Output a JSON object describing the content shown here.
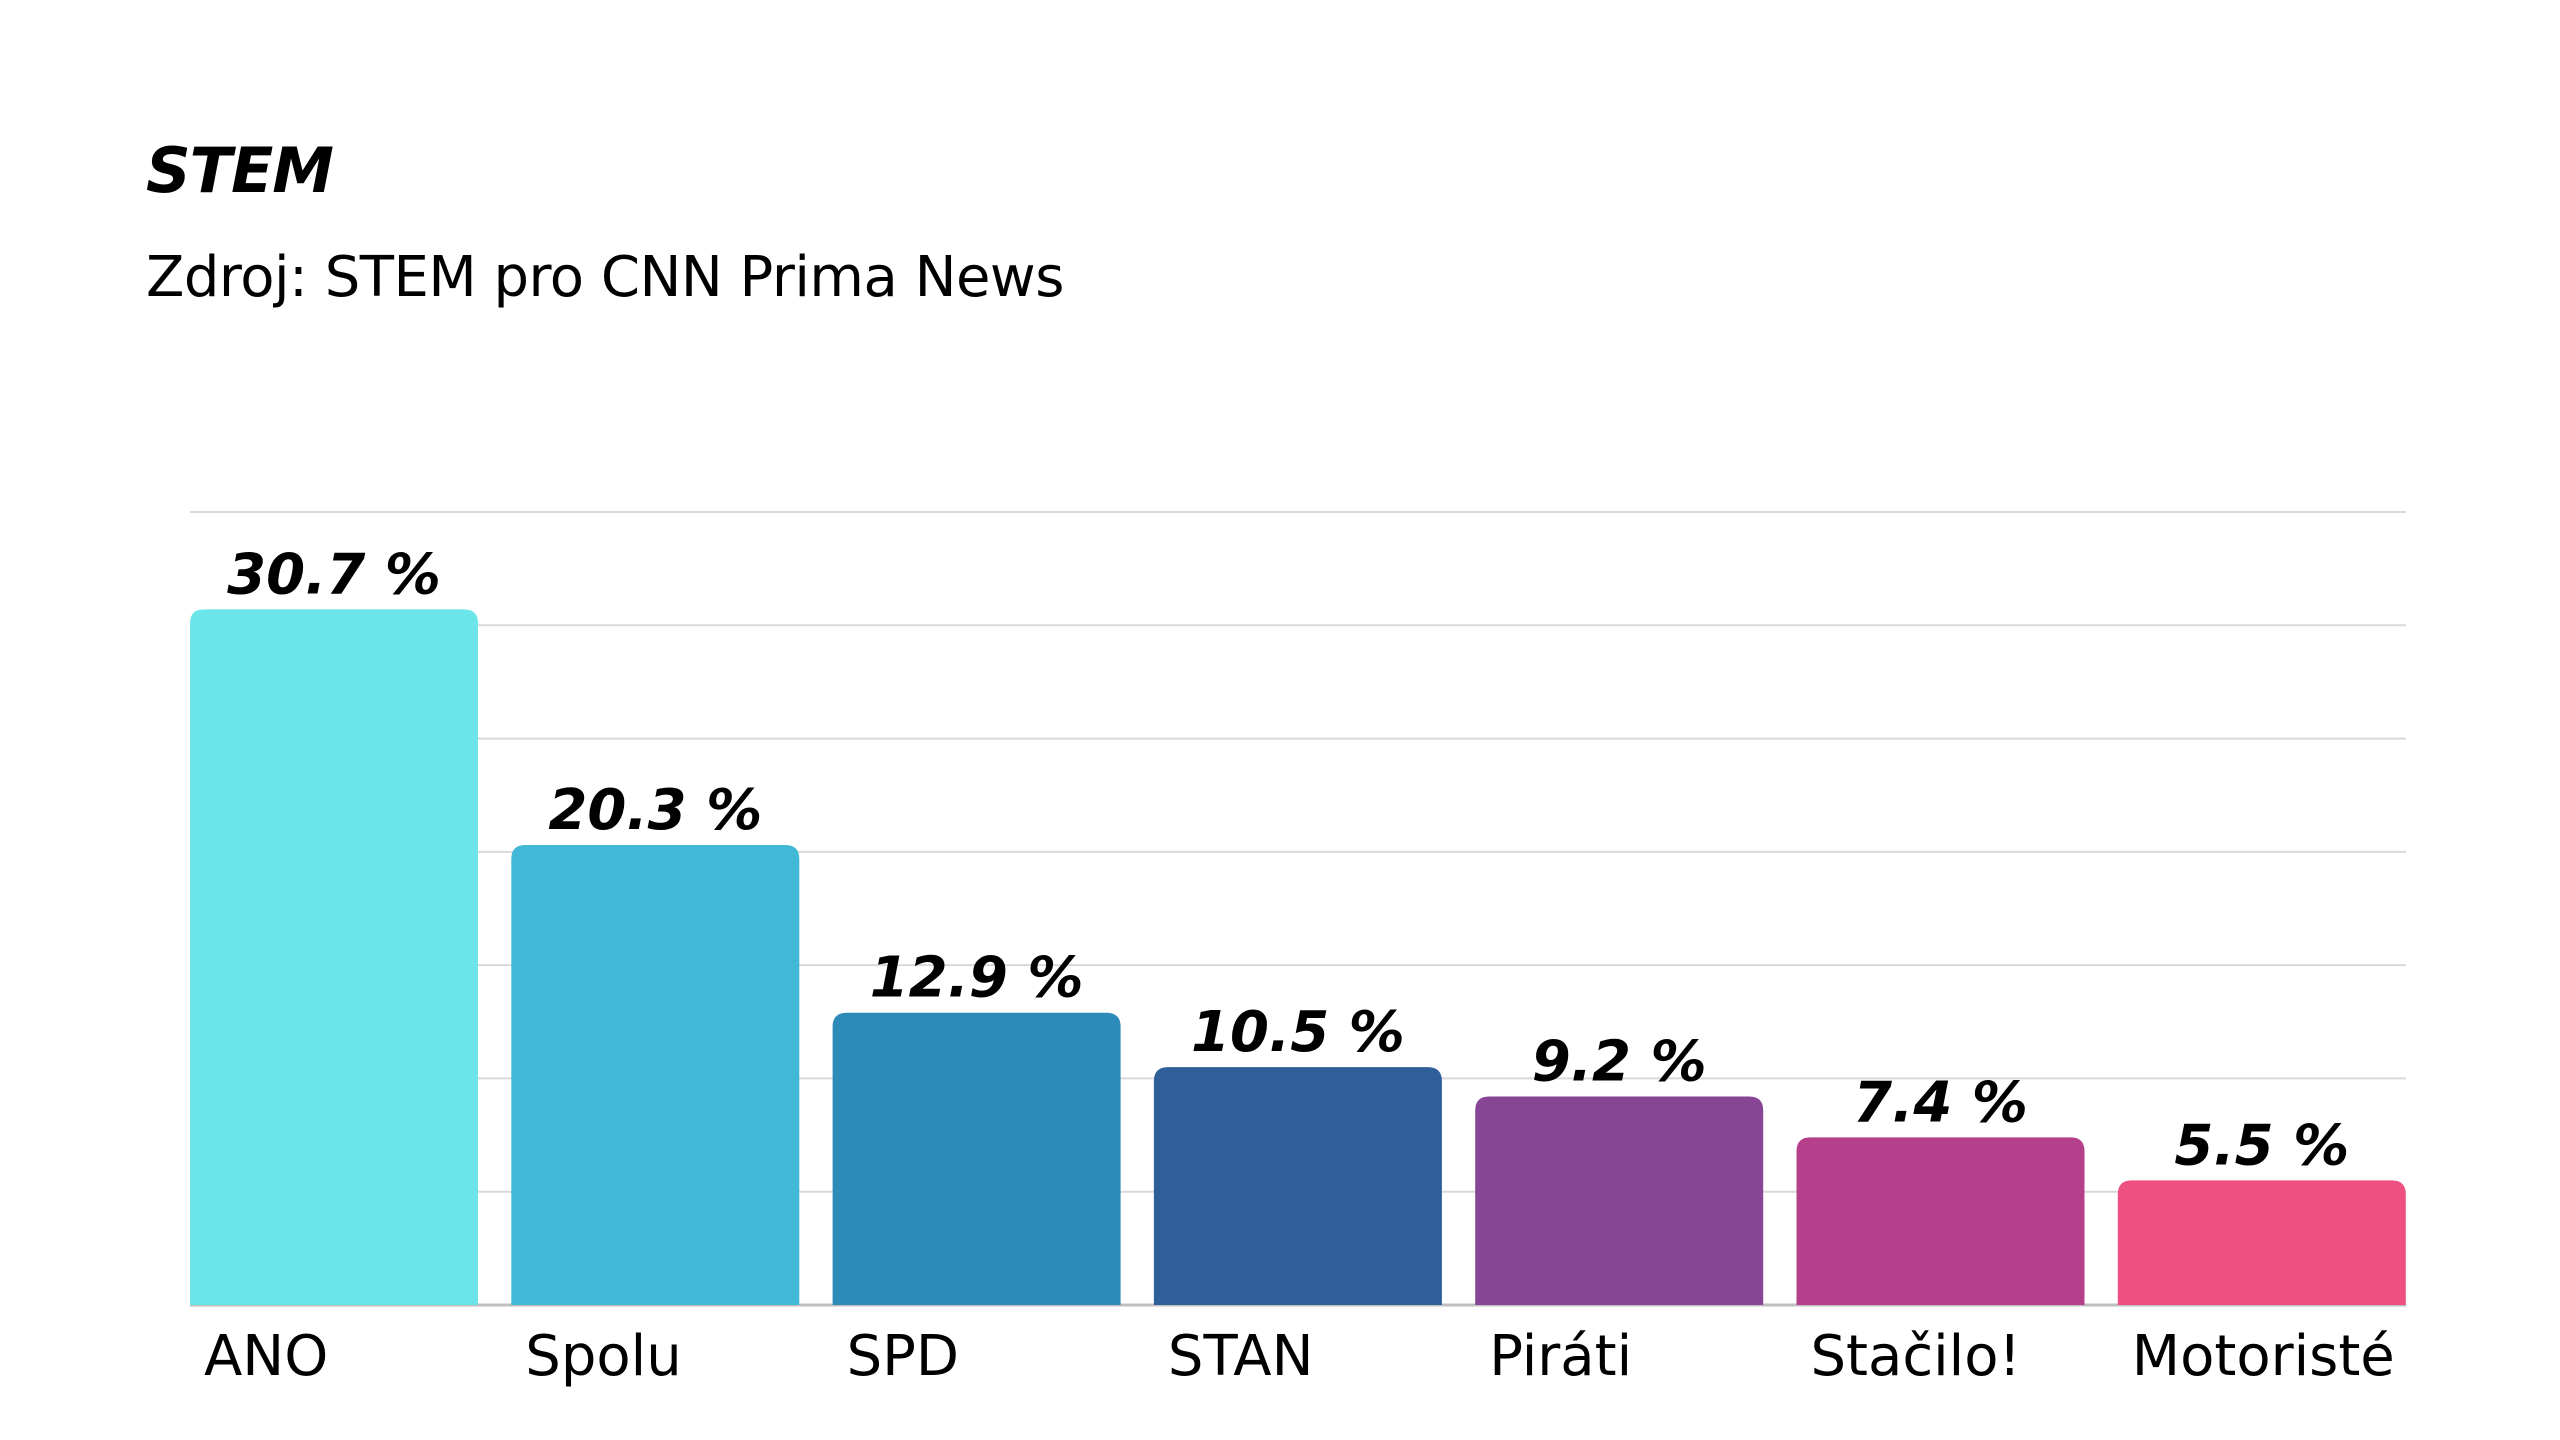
{
  "chart_data": {
    "type": "bar",
    "title": "STEM",
    "subtitle": "Zdroj: STEM pro CNN Prima News",
    "categories": [
      "ANO",
      "Spolu",
      "SPD",
      "STAN",
      "Piráti",
      "Stačilo!",
      "Motoristé"
    ],
    "values": [
      30.7,
      20.3,
      12.9,
      10.5,
      9.2,
      7.4,
      5.5
    ],
    "value_labels": [
      "30.7 %",
      "20.3 %",
      "12.9 %",
      "10.5 %",
      "9.2 %",
      "7.4 %",
      "5.5 %"
    ],
    "colors": [
      "#6ce5e8",
      "#41b8d5",
      "#2d8bba",
      "#2f5f98",
      "#874595",
      "#b63f8c",
      "#ee5081"
    ],
    "ylim": [
      0,
      35
    ],
    "gridline_step": 5,
    "grid": true,
    "xlabel": "",
    "ylabel": "",
    "gridline_color": "#d9d9d9",
    "axis_color": "#bfbfbf"
  }
}
